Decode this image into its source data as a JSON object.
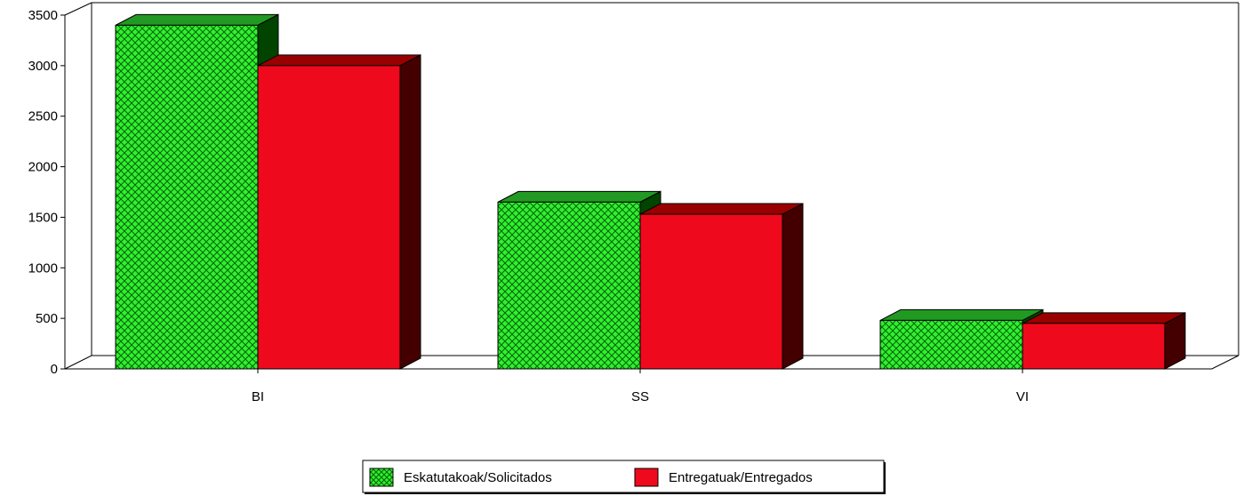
{
  "chart_data": {
    "type": "bar",
    "categories": [
      "BI",
      "SS",
      "VI"
    ],
    "series": [
      {
        "name": "Eskatutakoak/Solicitados",
        "values": [
          3400,
          1650,
          480
        ]
      },
      {
        "name": "Entregatuak/Entregados",
        "values": [
          3000,
          1530,
          450
        ]
      }
    ],
    "ylim": [
      0,
      3500
    ],
    "yticks": [
      0,
      500,
      1000,
      1500,
      2000,
      2500,
      3000,
      3500
    ],
    "title": "",
    "xlabel": "",
    "ylabel": "",
    "grid": false,
    "legend_position": "bottom-center",
    "colors": {
      "series1_face": "#33ee33",
      "series1_hatch": "#006600",
      "series1_top": "#229922",
      "series1_side": "#004400",
      "series2_face": "#ee0a1c",
      "series2_top": "#990000",
      "series2_side": "#440000"
    }
  }
}
